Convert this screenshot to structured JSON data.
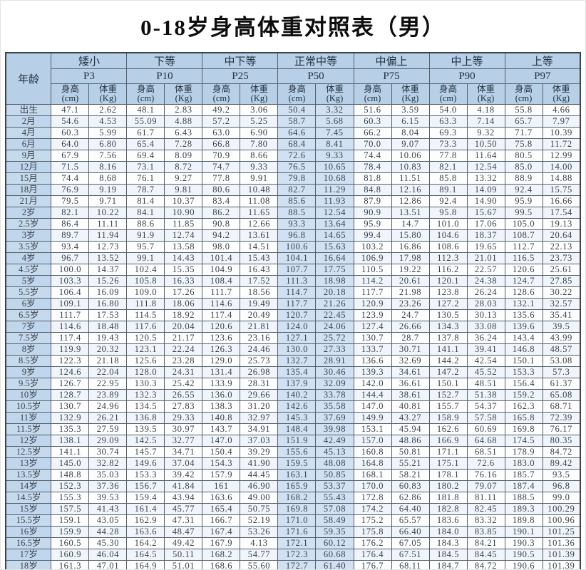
{
  "title": "0-18岁身高体重对照表（男）",
  "table": {
    "age_header": "年龄",
    "groups": [
      {
        "name": "矮小",
        "percentile": "P3"
      },
      {
        "name": "下等",
        "percentile": "P10"
      },
      {
        "name": "中下等",
        "percentile": "P25"
      },
      {
        "name": "正常中等",
        "percentile": "P50"
      },
      {
        "name": "中偏上",
        "percentile": "P75"
      },
      {
        "name": "中上等",
        "percentile": "P90"
      },
      {
        "name": "上等",
        "percentile": "P97"
      }
    ],
    "measure_headers": {
      "height_label": "身高",
      "height_unit": "(cm)",
      "weight_label": "体重",
      "weight_unit": "(Kg)"
    },
    "rows": [
      {
        "age": "出生",
        "values": [
          "47.1",
          "2.62",
          "48.1",
          "2.83",
          "49.2",
          "3.06",
          "50.4",
          "3.32",
          "51.6",
          "3.59",
          "54.0",
          "4.18",
          "55.8",
          "4.66"
        ]
      },
      {
        "age": "2月",
        "values": [
          "54.6",
          "4.53",
          "55.09",
          "4.88",
          "57.2",
          "5.25",
          "58.7",
          "5.68",
          "60.3",
          "6.15",
          "63.3",
          "7.14",
          "65.7",
          "7.97"
        ]
      },
      {
        "age": "4月",
        "values": [
          "60.3",
          "5.99",
          "61.7",
          "6.43",
          "63.0",
          "6.90",
          "64.6",
          "7.45",
          "66.2",
          "8.04",
          "69.3",
          "9.32",
          "71.7",
          "10.39"
        ]
      },
      {
        "age": "6月",
        "values": [
          "64.0",
          "6.80",
          "65.4",
          "7.28",
          "66.8",
          "7.80",
          "68.4",
          "8.41",
          "70.0",
          "9.07",
          "73.3",
          "10.50",
          "75.8",
          "11.72"
        ]
      },
      {
        "age": "9月",
        "values": [
          "67.9",
          "7.56",
          "69.4",
          "8.09",
          "70.9",
          "8.66",
          "72.6",
          "9.33",
          "74.4",
          "10.06",
          "77.8",
          "11.64",
          "80.5",
          "12.99"
        ]
      },
      {
        "age": "12月",
        "values": [
          "71.5",
          "8.16",
          "73.1",
          "8.72",
          "74.7",
          "9.33",
          "76.5",
          "10.65",
          "78.4",
          "10.83",
          "82.1",
          "12.54",
          "85.0",
          "14.00"
        ]
      },
      {
        "age": "15月",
        "values": [
          "74.4",
          "8.68",
          "76.1",
          "9.27",
          "77.8",
          "9.91",
          "79.8",
          "10.68",
          "81.8",
          "11.51",
          "85.8",
          "13.32",
          "88.9",
          "14.88"
        ]
      },
      {
        "age": "18月",
        "values": [
          "76.9",
          "9.19",
          "78.7",
          "9.81",
          "80.6",
          "10.48",
          "82.7",
          "11.29",
          "84.8",
          "12.16",
          "89.1",
          "14.09",
          "92.4",
          "15.75"
        ]
      },
      {
        "age": "21月",
        "values": [
          "79.5",
          "9.71",
          "81.4",
          "10.37",
          "83.4",
          "11.08",
          "85.6",
          "11.93",
          "87.9",
          "12.86",
          "92.4",
          "14.90",
          "95.9",
          "16.66"
        ]
      },
      {
        "age": "2岁",
        "values": [
          "82.1",
          "10.22",
          "84.1",
          "10.90",
          "86.2",
          "11.65",
          "88.5",
          "12.54",
          "90.9",
          "13.51",
          "95.8",
          "15.67",
          "99.5",
          "17.54"
        ]
      },
      {
        "age": "2.5岁",
        "values": [
          "86.4",
          "11.11",
          "88.6",
          "11.85",
          "90.8",
          "12.66",
          "93.3",
          "13.64",
          "95.9",
          "14.7",
          "101.0",
          "17.06",
          "105.0",
          "19.13"
        ]
      },
      {
        "age": "3岁",
        "values": [
          "89.7",
          "11.94",
          "91.9",
          "12.74",
          "94.2",
          "13.61",
          "96.8",
          "14.65",
          "99.4",
          "15.80",
          "104.6",
          "18.37",
          "108.7",
          "20.64"
        ]
      },
      {
        "age": "3.5岁",
        "values": [
          "93.4",
          "12.73",
          "95.7",
          "13.58",
          "98.0",
          "14.51",
          "100.6",
          "15.63",
          "103.2",
          "16.86",
          "108.6",
          "19.65",
          "112.7",
          "22.13"
        ]
      },
      {
        "age": "4岁",
        "values": [
          "96.7",
          "13.52",
          "99.1",
          "14.43",
          "101.4",
          "15.43",
          "104.1",
          "16.64",
          "106.9",
          "17.98",
          "112.3",
          "21.01",
          "116.5",
          "23.73"
        ]
      },
      {
        "age": "4.5岁",
        "values": [
          "100.0",
          "14.37",
          "102.4",
          "15.35",
          "104.9",
          "16.43",
          "107.7",
          "17.75",
          "110.5",
          "19.22",
          "116.2",
          "22.57",
          "120.6",
          "25.61"
        ]
      },
      {
        "age": "5岁",
        "values": [
          "103.3",
          "15.26",
          "105.8",
          "16.33",
          "108.4",
          "17.52",
          "111.3",
          "18.98",
          "114.2",
          "20.61",
          "120.1",
          "24.38",
          "124.7",
          "27.85"
        ]
      },
      {
        "age": "5.5岁",
        "values": [
          "106.4",
          "16.09",
          "109.0",
          "17.26",
          "111.7",
          "18.56",
          "114.7",
          "20.18",
          "117.7",
          "21.98",
          "123.8",
          "26.24",
          "128.6",
          "30.22"
        ]
      },
      {
        "age": "6岁",
        "values": [
          "109.1",
          "16.80",
          "111.8",
          "18.06",
          "114.6",
          "19.49",
          "117.7",
          "21.26",
          "120.9",
          "23.26",
          "127.2",
          "28.03",
          "132.1",
          "32.57"
        ]
      },
      {
        "age": "6.5岁",
        "values": [
          "111.7",
          "17.53",
          "114.5",
          "18.92",
          "117.4",
          "20.49",
          "120.7",
          "22.45",
          "123.9",
          "24.7",
          "130.5",
          "30.13",
          "135.6",
          "35.41"
        ]
      },
      {
        "age": "7岁",
        "values": [
          "114.6",
          "18.48",
          "117.6",
          "20.04",
          "120.6",
          "21.81",
          "124.0",
          "24.06",
          "127.4",
          "26.66",
          "134.3",
          "33.08",
          "139.6",
          "39.5"
        ]
      },
      {
        "age": "7.5岁",
        "values": [
          "117.4",
          "19.43",
          "120.5",
          "21.17",
          "123.6",
          "23.16",
          "127.1",
          "25.72",
          "130.7",
          "28.7",
          "137.8",
          "36.24",
          "143.4",
          "43.99"
        ]
      },
      {
        "age": "8岁",
        "values": [
          "119.9",
          "20.32",
          "123.1",
          "22.24",
          "126.3",
          "24.46",
          "130.0",
          "27.33",
          "133.7",
          "30.71",
          "141.1",
          "39.41",
          "146.8",
          "48.57"
        ]
      },
      {
        "age": "8.5岁",
        "values": [
          "122.3",
          "21.18",
          "125.6",
          "23.28",
          "129.0",
          "25.73",
          "132.7",
          "28.91",
          "136.6",
          "32.69",
          "144.2",
          "42.54",
          "150.1",
          "53.08"
        ]
      },
      {
        "age": "9岁",
        "values": [
          "124.6",
          "22.04",
          "128.0",
          "24.31",
          "131.4",
          "26.98",
          "135.4",
          "30.46",
          "139.3",
          "34.61",
          "147.2",
          "45.52",
          "153.3",
          "57.3"
        ]
      },
      {
        "age": "9.5岁",
        "values": [
          "126.7",
          "22.95",
          "130.3",
          "25.42",
          "133.9",
          "28.31",
          "137.9",
          "32.09",
          "142.0",
          "36.61",
          "150.1",
          "48.51",
          "156.4",
          "61.37"
        ]
      },
      {
        "age": "10岁",
        "values": [
          "128.7",
          "23.89",
          "132.3",
          "26.55",
          "136.0",
          "29.66",
          "140.2",
          "33.78",
          "144.4",
          "38.61",
          "152.7",
          "51.38",
          "159.2",
          "65.08"
        ]
      },
      {
        "age": "10.5岁",
        "values": [
          "130.7",
          "24.96",
          "134.5",
          "27.83",
          "138.3",
          "31.20",
          "142.6",
          "35.58",
          "147.0",
          "40.81",
          "155.7",
          "54.37",
          "162.3",
          "68.71"
        ]
      },
      {
        "age": "11岁",
        "values": [
          "132.9",
          "26.21",
          "136.8",
          "29.33",
          "140.8",
          "32.97",
          "145.3",
          "37.69",
          "149.9",
          "43.27",
          "158.9",
          "57.58",
          "165.8",
          "72.39"
        ]
      },
      {
        "age": "11.5岁",
        "values": [
          "135.3",
          "27.59",
          "139.5",
          "30.97",
          "143.7",
          "34.91",
          "148.4",
          "39.98",
          "153.1",
          "45.94",
          "162.6",
          "60.69",
          "169.8",
          "76.17"
        ]
      },
      {
        "age": "12岁",
        "values": [
          "138.1",
          "29.09",
          "142.5",
          "32.77",
          "147.0",
          "37.03",
          "151.9",
          "42.49",
          "157.0",
          "48.86",
          "166.9",
          "64.68",
          "174.5",
          "80.35"
        ]
      },
      {
        "age": "12.5岁",
        "values": [
          "141.1",
          "30.74",
          "145.7",
          "34.71",
          "150.4",
          "39.29",
          "155.6",
          "45.13",
          "160.8",
          "50.81",
          "171.1",
          "68.51",
          "178.9",
          "84.72"
        ]
      },
      {
        "age": "13岁",
        "values": [
          "145.0",
          "32.82",
          "149.6",
          "37.04",
          "154.3",
          "41.90",
          "159.5",
          "48.08",
          "164.8",
          "55.21",
          "175.1",
          "72.6",
          "183.0",
          "89.42"
        ]
      },
      {
        "age": "13.5岁",
        "values": [
          "148.8",
          "35.03",
          "153.3",
          "39.42",
          "157.9",
          "44.45",
          "163.1",
          "50.85",
          "168.1",
          "58.21",
          "178.1",
          "76.16",
          "185.7",
          "93.5"
        ]
      },
      {
        "age": "14岁",
        "values": [
          "152.3",
          "37.36",
          "156.7",
          "41.84",
          "161",
          "46.90",
          "165.9",
          "53.37",
          "170.0",
          "60.83",
          "180.2",
          "79.07",
          "187.4",
          "96.8"
        ]
      },
      {
        "age": "14.5岁",
        "values": [
          "155.3",
          "39.53",
          "159.4",
          "43.94",
          "163.6",
          "49.00",
          "168.2",
          "55.43",
          "172.8",
          "62.86",
          "181.8",
          "81.11",
          "188.5",
          "99.0"
        ]
      },
      {
        "age": "15岁",
        "values": [
          "157.5",
          "41.43",
          "161.4",
          "45.77",
          "165.4",
          "50.75",
          "169.8",
          "57.08",
          "174.2",
          "64.40",
          "182.8",
          "82.45",
          "189.3",
          "100.29"
        ]
      },
      {
        "age": "15.5岁",
        "values": [
          "159.1",
          "43.05",
          "162.9",
          "47.31",
          "166.7",
          "52.19",
          "171.0",
          "58.49",
          "175.2",
          "65.57",
          "183.6",
          "83.32",
          "189.8",
          "100.96"
        ]
      },
      {
        "age": "16岁",
        "values": [
          "159.9",
          "44.28",
          "163.6",
          "48.47",
          "167.4",
          "53.26",
          "171.6",
          "59.35",
          "175.8",
          "66.40",
          "184.0",
          "83.85",
          "190.1",
          "101.25"
        ]
      },
      {
        "age": "16.5岁",
        "values": [
          "160.5",
          "45.30",
          "164.2",
          "49.42",
          "167.9",
          "4.13",
          "172.1",
          "60.12",
          "176.2",
          "67.05",
          "184.3",
          "84.21",
          "190.3",
          "101.36"
        ]
      },
      {
        "age": "17岁",
        "values": [
          "160.9",
          "46.04",
          "164.5",
          "50.11",
          "168.2",
          "54.77",
          "172.3",
          "60.68",
          "176.4",
          "67.51",
          "184.5",
          "84.45",
          "190.5",
          "101.39"
        ]
      },
      {
        "age": "18岁",
        "values": [
          "161.3",
          "47.01",
          "164.9",
          "51.01",
          "168.6",
          "55.60",
          "172.7",
          "61.40",
          "176.7",
          "68.11",
          "184.7",
          "84.72",
          "190.6",
          "101.39"
        ]
      }
    ]
  },
  "colors": {
    "header_bg": "#b7cfe7",
    "age_col_bg": "#c6daee",
    "p50_col_bg": "#cfe1f3",
    "stripe_bg": "#eff5fb",
    "border": "#55606c"
  }
}
